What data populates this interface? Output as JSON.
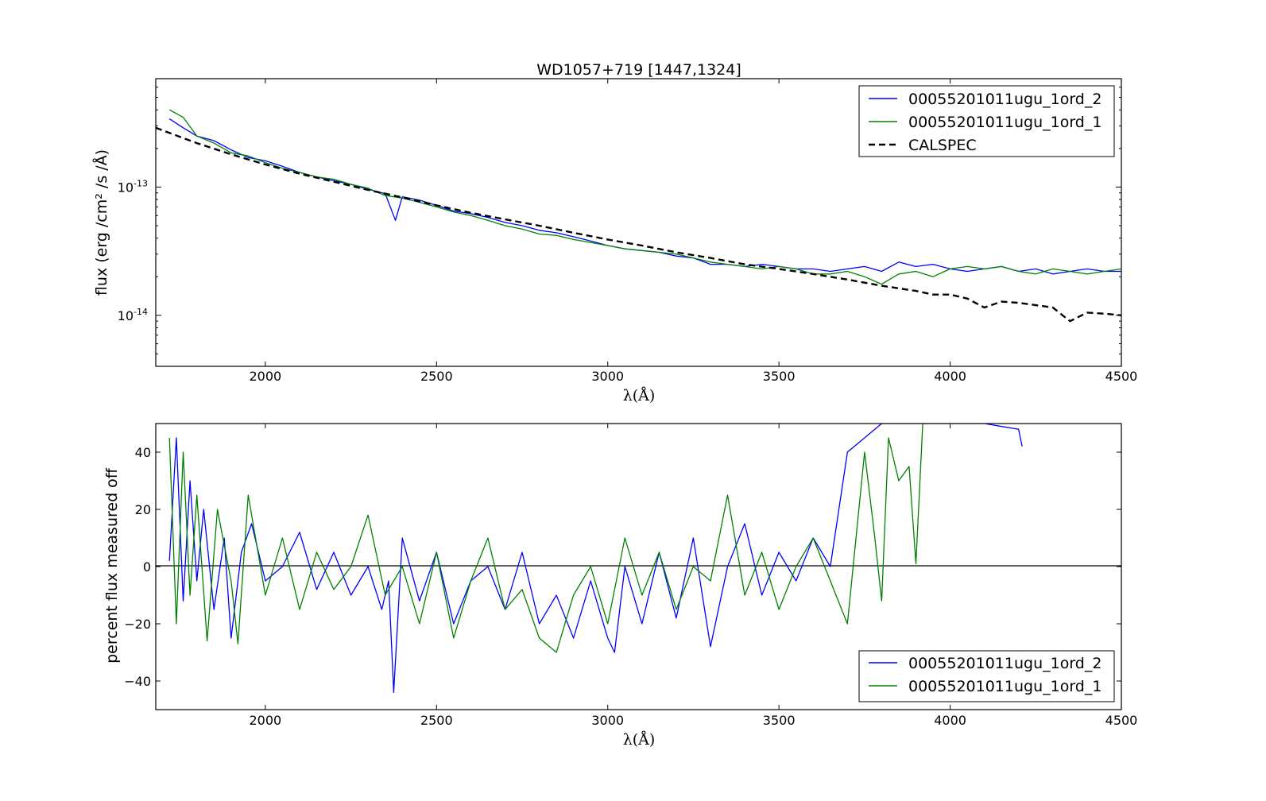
{
  "chart_data": [
    {
      "type": "line",
      "title": "WD1057+719 [1447,1324]",
      "xlabel": "λ(Å)",
      "ylabel": "flux (erg /cm² /s /Å)",
      "xlim": [
        1680,
        4500
      ],
      "ylim": [
        4e-15,
        7e-13
      ],
      "yscale": "log",
      "x_ticks": [
        2000,
        2500,
        3000,
        3500,
        4000,
        4500
      ],
      "y_ticks": [
        {
          "value": 1e-13,
          "base": "10",
          "exp": "-13"
        },
        {
          "value": 1e-14,
          "base": "10",
          "exp": "-14"
        }
      ],
      "legend_position": "upper right",
      "series": [
        {
          "name": "00055201011ugu_1ord_2",
          "color": "#0000ff",
          "style": "solid",
          "x": [
            1720,
            1760,
            1800,
            1850,
            1900,
            1950,
            2000,
            2050,
            2100,
            2150,
            2200,
            2250,
            2300,
            2350,
            2380,
            2400,
            2450,
            2500,
            2550,
            2600,
            2650,
            2700,
            2750,
            2800,
            2850,
            2900,
            2950,
            3000,
            3050,
            3100,
            3150,
            3200,
            3250,
            3300,
            3350,
            3400,
            3450,
            3500,
            3550,
            3600,
            3650,
            3700,
            3750,
            3800,
            3850,
            3900,
            3950,
            4000,
            4050,
            4100,
            4150,
            4200,
            4250,
            4300,
            4350,
            4400,
            4450,
            4500
          ],
          "y": [
            3.4e-13,
            2.9e-13,
            2.5e-13,
            2.3e-13,
            1.95e-13,
            1.7e-13,
            1.6e-13,
            1.45e-13,
            1.3e-13,
            1.2e-13,
            1.12e-13,
            1.05e-13,
            9.6e-14,
            8.9e-14,
            5.5e-14,
            8.4e-14,
            7.9e-14,
            7.2e-14,
            6.5e-14,
            6.2e-14,
            5.8e-14,
            5.3e-14,
            5e-14,
            4.6e-14,
            4.4e-14,
            4.1e-14,
            3.8e-14,
            3.5e-14,
            3.3e-14,
            3.2e-14,
            3.1e-14,
            2.9e-14,
            2.8e-14,
            2.5e-14,
            2.5e-14,
            2.4e-14,
            2.5e-14,
            2.4e-14,
            2.3e-14,
            2.3e-14,
            2.2e-14,
            2.3e-14,
            2.4e-14,
            2.2e-14,
            2.6e-14,
            2.4e-14,
            2.5e-14,
            2.3e-14,
            2.2e-14,
            2.3e-14,
            2.4e-14,
            2.2e-14,
            2.3e-14,
            2.1e-14,
            2.2e-14,
            2.3e-14,
            2.2e-14,
            2.2e-14
          ]
        },
        {
          "name": "00055201011ugu_1ord_1",
          "color": "#008000",
          "style": "solid",
          "x": [
            1720,
            1760,
            1800,
            1850,
            1900,
            1950,
            2000,
            2050,
            2100,
            2150,
            2200,
            2250,
            2300,
            2350,
            2400,
            2450,
            2500,
            2550,
            2600,
            2650,
            2700,
            2750,
            2800,
            2850,
            2900,
            2950,
            3000,
            3050,
            3100,
            3150,
            3200,
            3250,
            3300,
            3350,
            3400,
            3450,
            3500,
            3550,
            3600,
            3650,
            3700,
            3750,
            3800,
            3850,
            3900,
            3950,
            4000,
            4050,
            4100,
            4150,
            4200,
            4250,
            4300,
            4350,
            4400,
            4450,
            4500
          ],
          "y": [
            4e-13,
            3.5e-13,
            2.5e-13,
            2.2e-13,
            1.85e-13,
            1.75e-13,
            1.55e-13,
            1.4e-13,
            1.3e-13,
            1.2e-13,
            1.15e-13,
            1.05e-13,
            9.8e-14,
            8.6e-14,
            8.2e-14,
            7.6e-14,
            7e-14,
            6.4e-14,
            6e-14,
            5.5e-14,
            5e-14,
            4.7e-14,
            4.3e-14,
            4.2e-14,
            3.9e-14,
            3.7e-14,
            3.5e-14,
            3.3e-14,
            3.2e-14,
            3.1e-14,
            3e-14,
            2.8e-14,
            2.6e-14,
            2.5e-14,
            2.4e-14,
            2.3e-14,
            2.4e-14,
            2.3e-14,
            2.1e-14,
            2.1e-14,
            2.2e-14,
            2e-14,
            1.75e-14,
            2.1e-14,
            2.2e-14,
            2e-14,
            2.3e-14,
            2.4e-14,
            2.3e-14,
            2.4e-14,
            2.2e-14,
            2.1e-14,
            2.3e-14,
            2.2e-14,
            2.1e-14,
            2.2e-14,
            2.3e-14
          ]
        },
        {
          "name": "CALSPEC",
          "color": "#000000",
          "style": "dashed",
          "x": [
            1680,
            1800,
            1900,
            2000,
            2100,
            2200,
            2300,
            2400,
            2500,
            2600,
            2700,
            2800,
            2900,
            3000,
            3100,
            3200,
            3300,
            3400,
            3500,
            3600,
            3700,
            3800,
            3900,
            3950,
            4000,
            4050,
            4100,
            4150,
            4200,
            4250,
            4300,
            4350,
            4400,
            4450,
            4500
          ],
          "y": [
            2.9e-13,
            2.2e-13,
            1.8e-13,
            1.5e-13,
            1.27e-13,
            1.1e-13,
            9.5e-14,
            8.3e-14,
            7.2e-14,
            6.3e-14,
            5.6e-14,
            5e-14,
            4.4e-14,
            3.9e-14,
            3.5e-14,
            3.1e-14,
            2.8e-14,
            2.5e-14,
            2.3e-14,
            2.1e-14,
            1.9e-14,
            1.7e-14,
            1.55e-14,
            1.45e-14,
            1.45e-14,
            1.35e-14,
            1.15e-14,
            1.28e-14,
            1.25e-14,
            1.2e-14,
            1.15e-14,
            9e-15,
            1.05e-14,
            1.03e-14,
            1e-14
          ]
        }
      ]
    },
    {
      "type": "line",
      "title": "",
      "xlabel": "λ(Å)",
      "ylabel": "percent flux measured off",
      "xlim": [
        1680,
        4500
      ],
      "ylim": [
        -50,
        50
      ],
      "x_ticks": [
        2000,
        2500,
        3000,
        3500,
        4000,
        4500
      ],
      "y_ticks": [
        -40,
        -20,
        0,
        20,
        40
      ],
      "zero_line": true,
      "legend_position": "lower right",
      "series": [
        {
          "name": "00055201011ugu_1ord_2",
          "color": "#0000ff",
          "style": "solid",
          "x": [
            1720,
            1740,
            1760,
            1780,
            1800,
            1820,
            1850,
            1880,
            1900,
            1930,
            1960,
            2000,
            2050,
            2100,
            2150,
            2200,
            2250,
            2300,
            2340,
            2360,
            2375,
            2400,
            2450,
            2500,
            2550,
            2600,
            2650,
            2700,
            2750,
            2800,
            2850,
            2900,
            2950,
            3000,
            3020,
            3050,
            3100,
            3150,
            3200,
            3250,
            3300,
            3350,
            3400,
            3450,
            3500,
            3550,
            3600,
            3650,
            3700,
            3750,
            3800,
            3850,
            3900,
            3950,
            4000,
            4050,
            4100,
            4200,
            4210
          ],
          "y": [
            2,
            45,
            -12,
            30,
            -5,
            20,
            -15,
            10,
            -25,
            5,
            15,
            -5,
            0,
            12,
            -8,
            5,
            -10,
            0,
            -15,
            -5,
            -44,
            10,
            -12,
            5,
            -20,
            -5,
            0,
            -15,
            5,
            -20,
            -10,
            -25,
            -5,
            -25,
            -30,
            0,
            -20,
            5,
            -18,
            10,
            -28,
            0,
            15,
            -10,
            5,
            -5,
            10,
            0,
            40,
            45,
            50,
            50,
            50,
            50,
            50,
            50,
            50,
            48,
            42
          ]
        },
        {
          "name": "00055201011ugu_1ord_1",
          "color": "#008000",
          "style": "solid",
          "x": [
            1720,
            1740,
            1760,
            1780,
            1800,
            1830,
            1860,
            1900,
            1920,
            1950,
            2000,
            2050,
            2100,
            2150,
            2200,
            2250,
            2300,
            2350,
            2400,
            2450,
            2500,
            2550,
            2600,
            2650,
            2700,
            2750,
            2800,
            2850,
            2900,
            2950,
            3000,
            3050,
            3100,
            3150,
            3200,
            3250,
            3300,
            3350,
            3400,
            3450,
            3500,
            3550,
            3600,
            3650,
            3700,
            3750,
            3780,
            3800,
            3820,
            3850,
            3880,
            3900,
            3920
          ],
          "y": [
            45,
            -20,
            40,
            -10,
            25,
            -26,
            20,
            -5,
            -27,
            25,
            -10,
            10,
            -15,
            5,
            -8,
            0,
            18,
            -10,
            0,
            -20,
            5,
            -25,
            -5,
            10,
            -15,
            -8,
            -25,
            -30,
            -10,
            0,
            -20,
            10,
            -10,
            5,
            -15,
            0,
            -5,
            25,
            -10,
            5,
            -15,
            0,
            10,
            -5,
            -20,
            40,
            10,
            -12,
            45,
            30,
            35,
            1,
            50
          ]
        }
      ]
    }
  ]
}
